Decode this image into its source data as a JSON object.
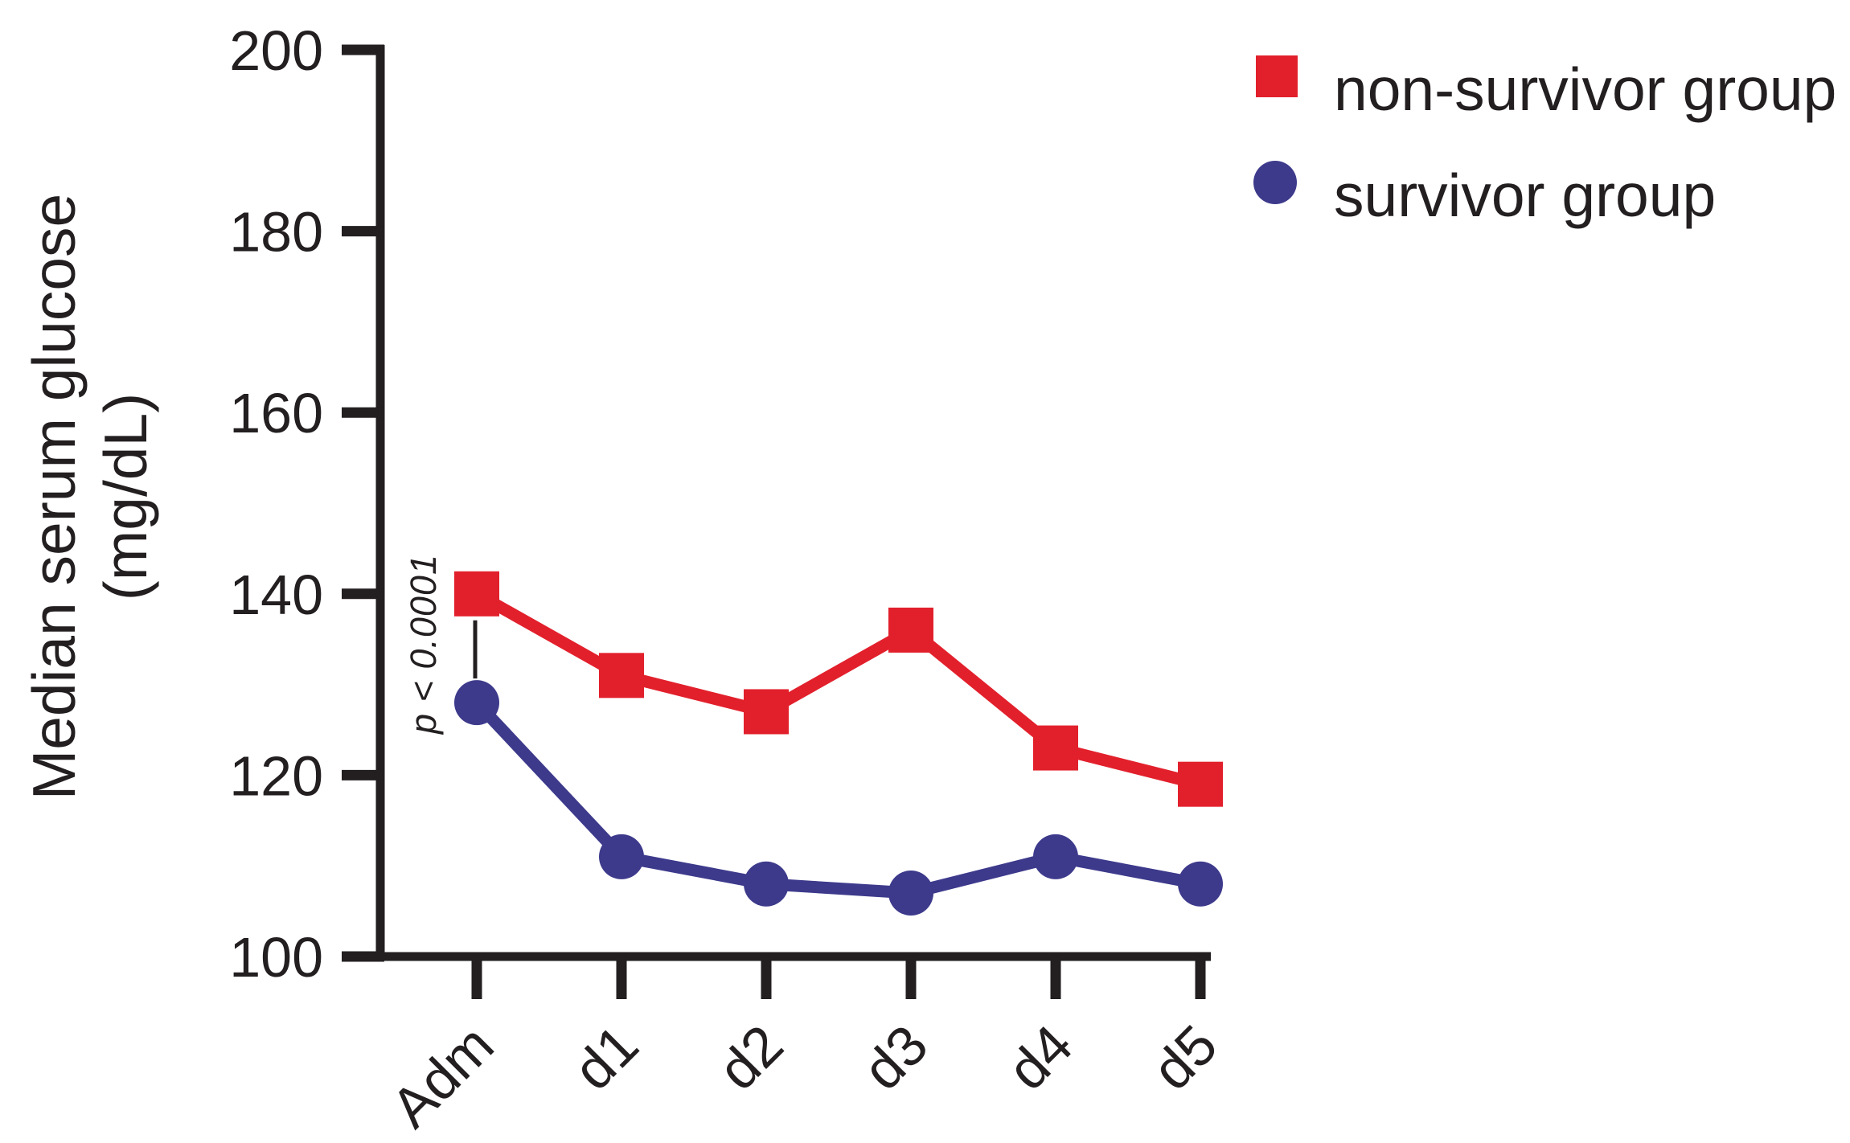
{
  "chart_data": {
    "type": "line",
    "categories": [
      "Adm",
      "d1",
      "d2",
      "d3",
      "d4",
      "d5"
    ],
    "series": [
      {
        "name": "non-survivor group",
        "marker": "square",
        "color": "#e2202c",
        "values": [
          140,
          131,
          127,
          136,
          123,
          119
        ]
      },
      {
        "name": "survivor group",
        "marker": "circle",
        "color": "#3d3a8c",
        "values": [
          128,
          111,
          108,
          107,
          111,
          108
        ]
      }
    ],
    "ylabel_lines": [
      "Median serum glucose",
      "(mg/dL)"
    ],
    "xlabel": "",
    "ylim": [
      100,
      200
    ],
    "yticks": [
      100,
      120,
      140,
      160,
      180,
      200
    ],
    "annotation": "p < 0.0001",
    "annotation_at_category": "Adm",
    "legend_position": "top-right",
    "grid": false,
    "axis_color": "#231f20",
    "background": "#ffffff"
  }
}
